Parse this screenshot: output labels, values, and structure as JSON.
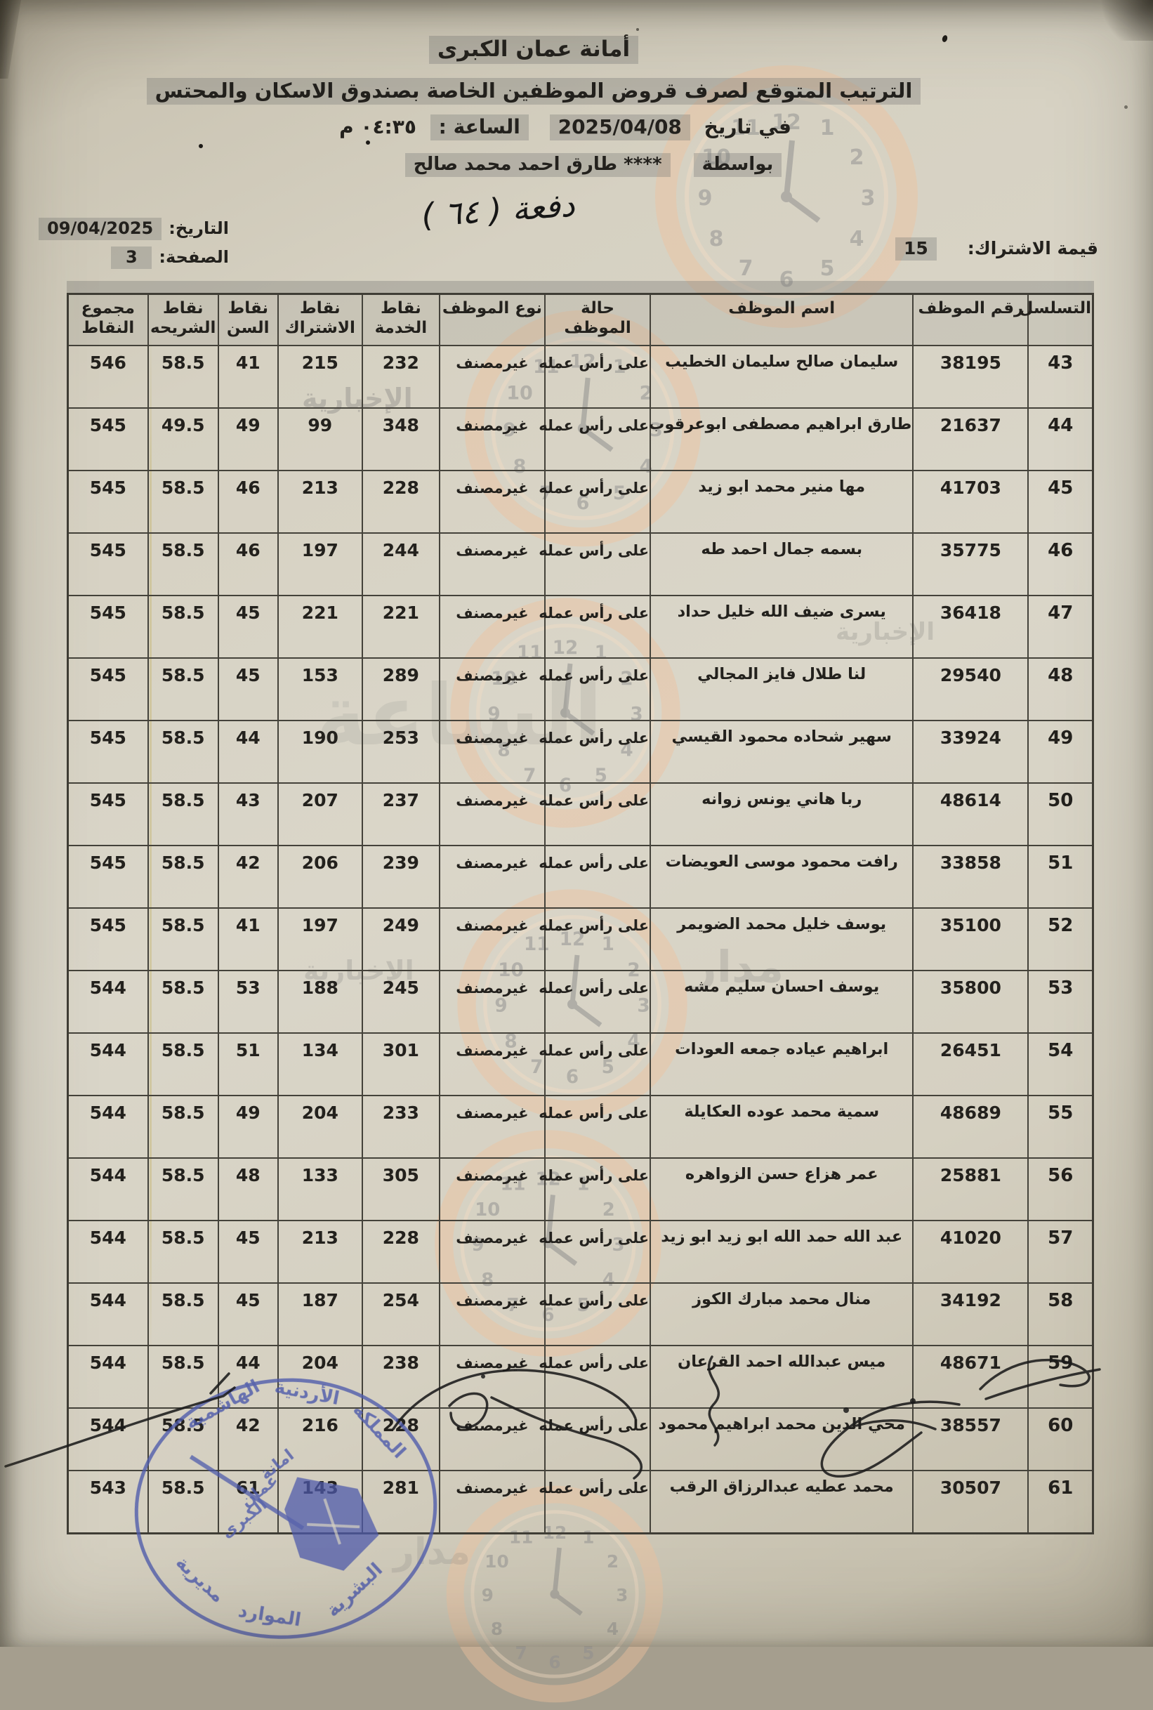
{
  "document": {
    "org": "أمانة عمان الكبرى",
    "title": "الترتيب المتوقع لصرف قروض الموظفين الخاصة بصندوق الاسكان والمحتس",
    "printed_on_label": "في تاريخ",
    "printed_date": "2025/04/08",
    "time_label": "الساعة :",
    "time_value": "٠٤:٣٥ م",
    "by_label": "بواسطة",
    "by_name": "**** طارق احمد محمد صالح"
  },
  "meta": {
    "date_label": "التاريخ:",
    "date_value": "09/04/2025",
    "page_label": "الصفحة:",
    "page_value": "3",
    "subscription_label": "قيمة الاشتراك:",
    "subscription_value": "15",
    "handwritten_batch": "دفعة ( ٦٤ )"
  },
  "table": {
    "columns": [
      "التسلسل",
      "رقم الموظف",
      "اسم الموظف",
      "حالة الموظف",
      "نوع الموظف",
      "نقاط الخدمة",
      "نقاط الاشتراك",
      "نقاط السن",
      "نقاط الشريحه",
      "مجموع النقاط"
    ],
    "field_order": [
      "serial",
      "emp_no",
      "name",
      "status",
      "type",
      "service",
      "subscription",
      "age",
      "tier",
      "total"
    ],
    "rows": [
      {
        "serial": "43",
        "emp_no": "38195",
        "name": "سليمان صالح سليمان الخطيب",
        "status": "على رأس عمله",
        "type": "غيرمصنف",
        "service": "232",
        "subscription": "215",
        "age": "41",
        "tier": "58.5",
        "total": "546"
      },
      {
        "serial": "44",
        "emp_no": "21637",
        "name": "طارق ابراهيم مصطفى ابوعرقوب",
        "status": "على رأس عمله",
        "type": "غيرمصنف",
        "service": "348",
        "subscription": "99",
        "age": "49",
        "tier": "49.5",
        "total": "545"
      },
      {
        "serial": "45",
        "emp_no": "41703",
        "name": "مها منير محمد ابو زيد",
        "status": "على رأس عمله",
        "type": "غيرمصنف",
        "service": "228",
        "subscription": "213",
        "age": "46",
        "tier": "58.5",
        "total": "545"
      },
      {
        "serial": "46",
        "emp_no": "35775",
        "name": "بسمه جمال احمد طه",
        "status": "على رأس عمله",
        "type": "غيرمصنف",
        "service": "244",
        "subscription": "197",
        "age": "46",
        "tier": "58.5",
        "total": "545"
      },
      {
        "serial": "47",
        "emp_no": "36418",
        "name": "يسرى ضيف الله خليل حداد",
        "status": "على رأس عمله",
        "type": "غيرمصنف",
        "service": "221",
        "subscription": "221",
        "age": "45",
        "tier": "58.5",
        "total": "545"
      },
      {
        "serial": "48",
        "emp_no": "29540",
        "name": "لنا طلال فايز المجالي",
        "status": "على رأس عمله",
        "type": "غيرمصنف",
        "service": "289",
        "subscription": "153",
        "age": "45",
        "tier": "58.5",
        "total": "545"
      },
      {
        "serial": "49",
        "emp_no": "33924",
        "name": "سهير شحاده محمود القيسي",
        "status": "على رأس عمله",
        "type": "غيرمصنف",
        "service": "253",
        "subscription": "190",
        "age": "44",
        "tier": "58.5",
        "total": "545"
      },
      {
        "serial": "50",
        "emp_no": "48614",
        "name": "ربا هاني يونس زوانه",
        "status": "على رأس عمله",
        "type": "غيرمصنف",
        "service": "237",
        "subscription": "207",
        "age": "43",
        "tier": "58.5",
        "total": "545"
      },
      {
        "serial": "51",
        "emp_no": "33858",
        "name": "رافت محمود موسى العويضات",
        "status": "على رأس عمله",
        "type": "غيرمصنف",
        "service": "239",
        "subscription": "206",
        "age": "42",
        "tier": "58.5",
        "total": "545"
      },
      {
        "serial": "52",
        "emp_no": "35100",
        "name": "يوسف خليل محمد الضويمر",
        "status": "على رأس عمله",
        "type": "غيرمصنف",
        "service": "249",
        "subscription": "197",
        "age": "41",
        "tier": "58.5",
        "total": "545"
      },
      {
        "serial": "53",
        "emp_no": "35800",
        "name": "يوسف احسان سليم مشه",
        "status": "على رأس عمله",
        "type": "غيرمصنف",
        "service": "245",
        "subscription": "188",
        "age": "53",
        "tier": "58.5",
        "total": "544"
      },
      {
        "serial": "54",
        "emp_no": "26451",
        "name": "ابراهيم عياده جمعه العودات",
        "status": "على رأس عمله",
        "type": "غيرمصنف",
        "service": "301",
        "subscription": "134",
        "age": "51",
        "tier": "58.5",
        "total": "544"
      },
      {
        "serial": "55",
        "emp_no": "48689",
        "name": "سمية محمد عوده العكايلة",
        "status": "على رأس عمله",
        "type": "غيرمصنف",
        "service": "233",
        "subscription": "204",
        "age": "49",
        "tier": "58.5",
        "total": "544"
      },
      {
        "serial": "56",
        "emp_no": "25881",
        "name": "عمر هزاع حسن الزواهره",
        "status": "على رأس عمله",
        "type": "غيرمصنف",
        "service": "305",
        "subscription": "133",
        "age": "48",
        "tier": "58.5",
        "total": "544"
      },
      {
        "serial": "57",
        "emp_no": "41020",
        "name": "عبد الله حمد الله ابو زيد ابو زيد",
        "status": "على رأس عمله",
        "type": "غيرمصنف",
        "service": "228",
        "subscription": "213",
        "age": "45",
        "tier": "58.5",
        "total": "544"
      },
      {
        "serial": "58",
        "emp_no": "34192",
        "name": "منال محمد مبارك الكوز",
        "status": "على رأس عمله",
        "type": "غيرمصنف",
        "service": "254",
        "subscription": "187",
        "age": "45",
        "tier": "58.5",
        "total": "544"
      },
      {
        "serial": "59",
        "emp_no": "48671",
        "name": "ميس عبدالله احمد القرعان",
        "status": "على رأس عمله",
        "type": "غيرمصنف",
        "service": "238",
        "subscription": "204",
        "age": "44",
        "tier": "58.5",
        "total": "544"
      },
      {
        "serial": "60",
        "emp_no": "38557",
        "name": "محي الدين محمد ابراهيم محمود",
        "status": "على رأس عمله",
        "type": "غيرمصنف",
        "service": "228",
        "subscription": "216",
        "age": "42",
        "tier": "58.5",
        "total": "544"
      },
      {
        "serial": "61",
        "emp_no": "30507",
        "name": "محمد عطيه عبدالرزاق الرقب",
        "status": "على رأس عمله",
        "type": "غيرمصنف",
        "service": "281",
        "subscription": "143",
        "age": "61",
        "tier": "58.5",
        "total": "543"
      }
    ]
  },
  "stamp": {
    "top1": "المملكة",
    "top2": "الأردنية",
    "top3": "الهاشمية",
    "mid1": "امانة",
    "mid2": "عمان",
    "mid3": "الكبرى",
    "bot1": "مديرية",
    "bot2": "الموارد",
    "bot3": "البشرية"
  },
  "watermark": {
    "news": "الإخبارية",
    "brand": "مدار",
    "brand2": "الساعة",
    "clock_numbers": [
      "12",
      "1",
      "2",
      "3",
      "4",
      "5",
      "6",
      "7",
      "8",
      "9",
      "10",
      "11"
    ]
  }
}
